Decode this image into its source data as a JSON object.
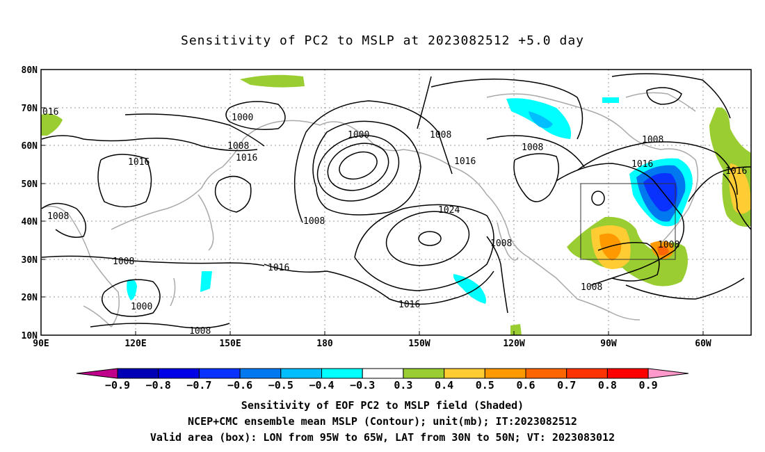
{
  "title": "Sensitivity of PC2 to MSLP at 2023082512 +5.0 day",
  "lat_labels": [
    "80N",
    "70N",
    "60N",
    "50N",
    "40N",
    "30N",
    "20N",
    "10N"
  ],
  "lon_labels": [
    "90E",
    "120E",
    "150E",
    "180",
    "150W",
    "120W",
    "90W",
    "60W"
  ],
  "contour_labels": [
    {
      "id": "c1000a",
      "text": "1000"
    },
    {
      "id": "c1008a",
      "text": "1008"
    },
    {
      "id": "c1016a",
      "text": "1016"
    },
    {
      "id": "c1016b",
      "text": "1016"
    },
    {
      "id": "c1000b",
      "text": "1000"
    },
    {
      "id": "c1008b",
      "text": "1008"
    },
    {
      "id": "c1016c",
      "text": "1016"
    },
    {
      "id": "c1008c",
      "text": "1008"
    },
    {
      "id": "c1016d",
      "text": "1016"
    },
    {
      "id": "c1008d",
      "text": "1008"
    },
    {
      "id": "c1016e",
      "text": "1016"
    },
    {
      "id": "c1008e",
      "text": "1008"
    },
    {
      "id": "c1008f",
      "text": "1008"
    },
    {
      "id": "c1008g",
      "text": "1008"
    },
    {
      "id": "c1024",
      "text": "1024"
    },
    {
      "id": "c1016f",
      "text": "1016"
    },
    {
      "id": "c1008h",
      "text": "1008"
    },
    {
      "id": "c1016g",
      "text": "1016"
    },
    {
      "id": "c1008i",
      "text": "1008"
    },
    {
      "id": "c1000c",
      "text": "1000"
    },
    {
      "id": "c1008j",
      "text": "1008"
    },
    {
      "id": "c1008k",
      "text": "1008"
    },
    {
      "id": "c016",
      "text": "016"
    }
  ],
  "colorbar": {
    "colors": [
      "#c0008a",
      "#0000b4",
      "#0000e6",
      "#0a32ff",
      "#0078f0",
      "#00beff",
      "#00ffff",
      "#ffffff",
      "#9acd32",
      "#ffcc33",
      "#ff9900",
      "#ff6600",
      "#ff3300",
      "#ff0000",
      "#ff99cc"
    ],
    "labels": [
      "−0.9",
      "−0.8",
      "−0.7",
      "−0.6",
      "−0.5",
      "−0.4",
      "−0.3",
      "0.3",
      "0.4",
      "0.5",
      "0.6",
      "0.7",
      "0.8",
      "0.9"
    ]
  },
  "captions": {
    "line1": "Sensitivity of EOF PC2 to MSLP field (Shaded)",
    "line2": "NCEP+CMC ensemble mean MSLP (Contour); unit(mb); IT:2023082512",
    "line3": "Valid area (box): LON from 95W to 65W, LAT from 30N to 50N; VT: 2023083012"
  }
}
